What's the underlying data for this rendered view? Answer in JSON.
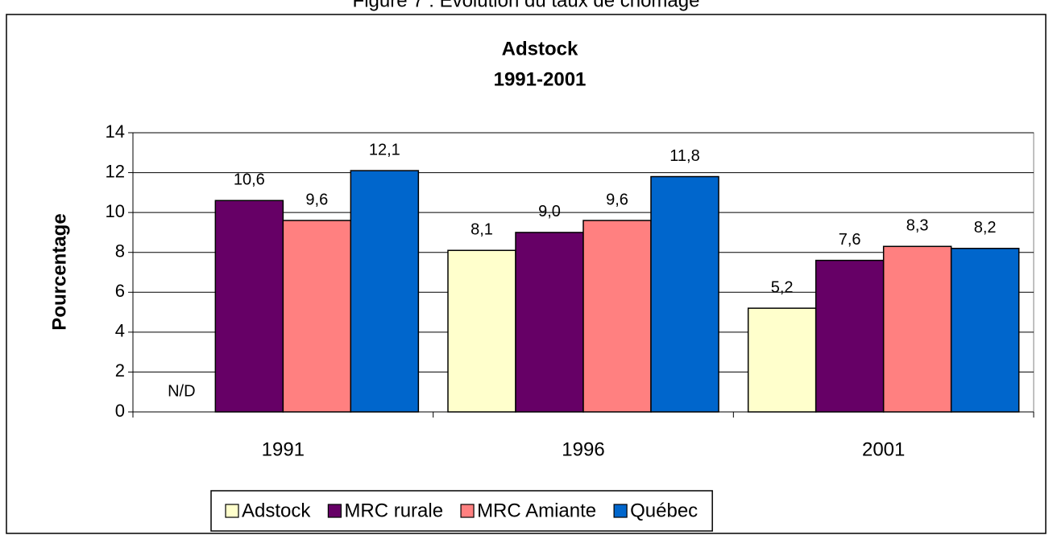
{
  "chart_data": {
    "type": "bar",
    "figure_title": "Figure 7 : Évolution du taux de chômage",
    "title": "Adstock",
    "subtitle": "1991-2001",
    "y_label": "Pourcentage",
    "categories": [
      "1991",
      "1996",
      "2001"
    ],
    "series": [
      {
        "name": "Adstock",
        "color": "#ffffcc",
        "values": [
          null,
          8.1,
          5.2
        ],
        "value_labels": [
          "N/D",
          "8,1",
          "5,2"
        ]
      },
      {
        "name": "MRC rurale",
        "color": "#660066",
        "values": [
          10.6,
          9.0,
          7.6
        ],
        "value_labels": [
          "10,6",
          "9,0",
          "7,6"
        ]
      },
      {
        "name": "MRC Amiante",
        "color": "#ff8080",
        "values": [
          9.6,
          9.6,
          8.3
        ],
        "value_labels": [
          "9,6",
          "9,6",
          "8,3"
        ]
      },
      {
        "name": "Québec",
        "color": "#0066cc",
        "values": [
          12.1,
          11.8,
          8.2
        ],
        "value_labels": [
          "12,1",
          "11,8",
          "8,2"
        ]
      }
    ],
    "ylim": [
      0,
      14
    ],
    "yticks": [
      0,
      2,
      4,
      6,
      8,
      10,
      12,
      14
    ],
    "grid": true,
    "legend": "bottom"
  }
}
